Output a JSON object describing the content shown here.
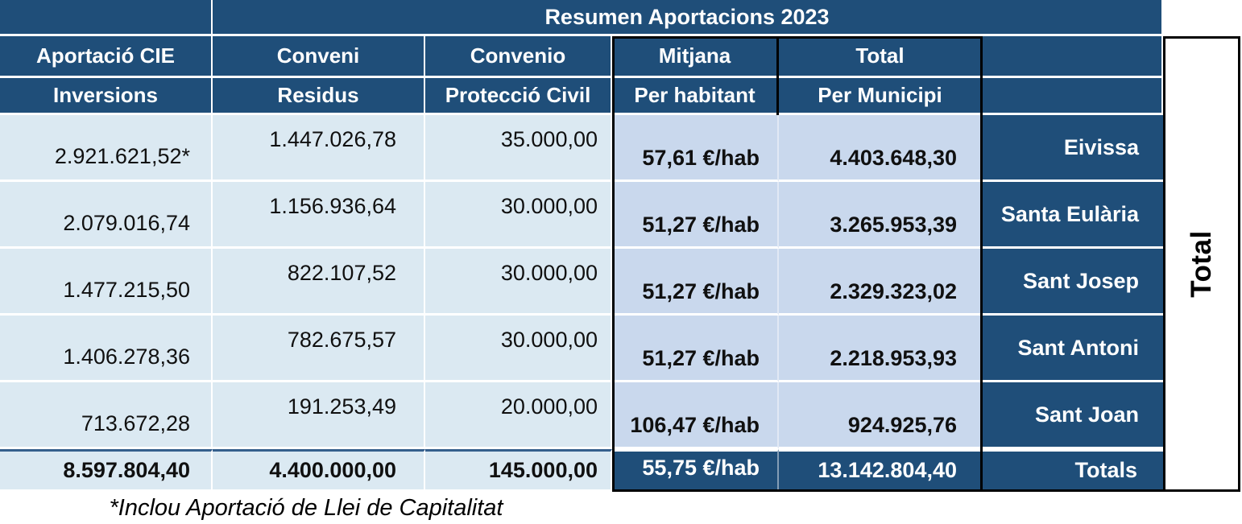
{
  "header": {
    "title": "Resumen Aportacions 2023",
    "cie_top": "Aportació CIE",
    "cie_bottom": "Inversions",
    "conveni_top": "Conveni",
    "conveni_bottom": "Residus",
    "convenio_top": "Convenio",
    "convenio_bottom": "Protecció Civil",
    "mitjana_top": "Mitjana",
    "mitjana_bottom": "Per habitant",
    "total_top": "Total",
    "total_bottom": "Per Municipi"
  },
  "rows": [
    {
      "inversions": "2.921.621,52*",
      "residus": "1.447.026,78",
      "proteccio_civil": "35.000,00",
      "per_habitant": "57,61 €/hab",
      "per_municipi": "4.403.648,30",
      "municipi": "Eivissa"
    },
    {
      "inversions": "2.079.016,74",
      "residus": "1.156.936,64",
      "proteccio_civil": "30.000,00",
      "per_habitant": "51,27 €/hab",
      "per_municipi": "3.265.953,39",
      "municipi": "Santa Eulària"
    },
    {
      "inversions": "1.477.215,50",
      "residus": "822.107,52",
      "proteccio_civil": "30.000,00",
      "per_habitant": "51,27 €/hab",
      "per_municipi": "2.329.323,02",
      "municipi": "Sant Josep"
    },
    {
      "inversions": "1.406.278,36",
      "residus": "782.675,57",
      "proteccio_civil": "30.000,00",
      "per_habitant": "51,27 €/hab",
      "per_municipi": "2.218.953,93",
      "municipi": "Sant Antoni"
    },
    {
      "inversions": "713.672,28",
      "residus": "191.253,49",
      "proteccio_civil": "20.000,00",
      "per_habitant": "106,47 €/hab",
      "per_municipi": "924.925,76",
      "municipi": "Sant Joan"
    }
  ],
  "totals": {
    "inversions": "8.597.804,40",
    "residus": "4.400.000,00",
    "proteccio_civil": "145.000,00",
    "per_habitant": "55,75 €/hab",
    "per_municipi": "13.142.804,40",
    "label": "Totals"
  },
  "side_label": "Total",
  "footnote": "*Inclou Aportació de Llei de Capitalitat",
  "colors": {
    "dark_blue": "#1F4E79",
    "light_blue": "#DBE9F2",
    "periwinkle": "#C9D8ED",
    "border_black": "#000000",
    "grid_white": "#FFFFFF"
  }
}
